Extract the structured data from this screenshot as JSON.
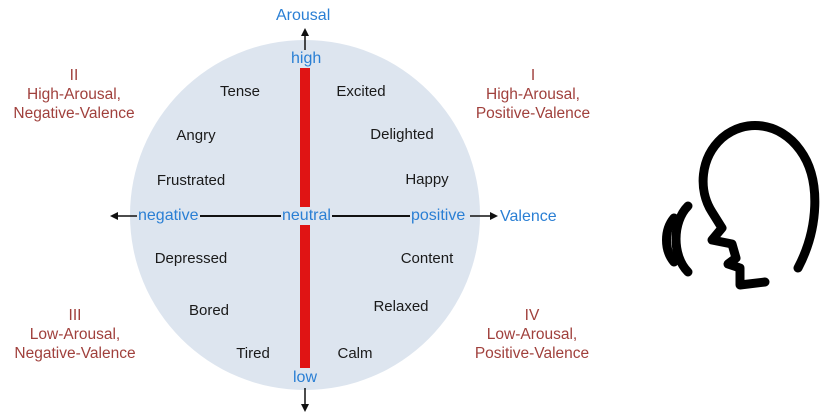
{
  "axes": {
    "vertical": {
      "label": "Arousal",
      "high": "high",
      "low": "low"
    },
    "horizontal": {
      "label": "Valence",
      "negative": "negative",
      "neutral": "neutral",
      "positive": "positive"
    }
  },
  "emotions": {
    "tense": "Tense",
    "excited": "Excited",
    "angry": "Angry",
    "delighted": "Delighted",
    "frustrated": "Frustrated",
    "happy": "Happy",
    "depressed": "Depressed",
    "content": "Content",
    "bored": "Bored",
    "relaxed": "Relaxed",
    "tired": "Tired",
    "calm": "Calm"
  },
  "quadrants": {
    "q1": {
      "numeral": "I",
      "line1": "High-Arousal,",
      "line2": "Positive-Valence"
    },
    "q2": {
      "numeral": "II",
      "line1": "High-Arousal,",
      "line2": "Negative-Valence"
    },
    "q3": {
      "numeral": "III",
      "line1": "Low-Arousal,",
      "line2": "Negative-Valence"
    },
    "q4": {
      "numeral": "IV",
      "line1": "Low-Arousal,",
      "line2": "Positive-Valence"
    }
  },
  "colors": {
    "circle_fill": "#dde5ef",
    "arousal_bar": "#e01414",
    "axis_text": "#2a7fd4",
    "quadrant_text": "#a0403c",
    "emotion_text": "#1a1a1a",
    "axis_line": "#111111"
  },
  "icons": {
    "speaker": "speaking-head-icon"
  }
}
